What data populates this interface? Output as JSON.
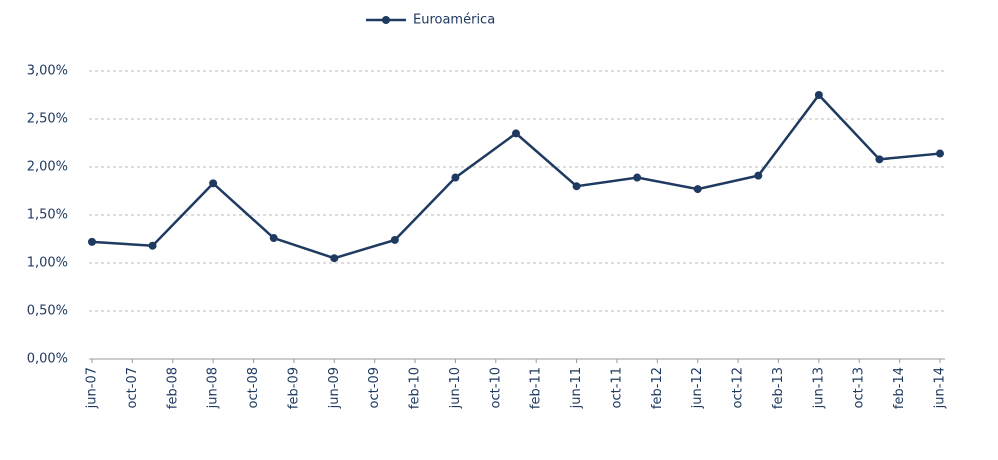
{
  "chart_data": {
    "type": "line",
    "x": [
      "2007-06",
      "2007-12",
      "2008-06",
      "2008-12",
      "2009-06",
      "2009-12",
      "2010-06",
      "2010-12",
      "2011-06",
      "2011-12",
      "2012-06",
      "2012-12",
      "2013-06",
      "2013-12",
      "2014-06"
    ],
    "series": [
      {
        "name": "Euroamérica",
        "color": "#1f3a60",
        "values": [
          1.22,
          1.18,
          1.83,
          1.26,
          1.05,
          1.24,
          1.89,
          2.35,
          1.8,
          1.89,
          1.77,
          1.91,
          2.75,
          2.08,
          2.14
        ]
      }
    ],
    "xlim": [
      "2007-06",
      "2014-06"
    ],
    "xticks": [
      {
        "value": "2007-06",
        "label": "jun-07"
      },
      {
        "value": "2007-10",
        "label": "oct-07"
      },
      {
        "value": "2008-02",
        "label": "feb-08"
      },
      {
        "value": "2008-06",
        "label": "jun-08"
      },
      {
        "value": "2008-10",
        "label": "oct-08"
      },
      {
        "value": "2009-02",
        "label": "feb-09"
      },
      {
        "value": "2009-06",
        "label": "jun-09"
      },
      {
        "value": "2009-10",
        "label": "oct-09"
      },
      {
        "value": "2010-02",
        "label": "feb-10"
      },
      {
        "value": "2010-06",
        "label": "jun-10"
      },
      {
        "value": "2010-10",
        "label": "oct-10"
      },
      {
        "value": "2011-02",
        "label": "feb-11"
      },
      {
        "value": "2011-06",
        "label": "jun-11"
      },
      {
        "value": "2011-10",
        "label": "oct-11"
      },
      {
        "value": "2012-02",
        "label": "feb-12"
      },
      {
        "value": "2012-06",
        "label": "jun-12"
      },
      {
        "value": "2012-10",
        "label": "oct-12"
      },
      {
        "value": "2013-02",
        "label": "feb-13"
      },
      {
        "value": "2013-06",
        "label": "jun-13"
      },
      {
        "value": "2013-10",
        "label": "oct-13"
      },
      {
        "value": "2014-02",
        "label": "feb-14"
      },
      {
        "value": "2014-06",
        "label": "jun-14"
      }
    ],
    "ylim": [
      0,
      3
    ],
    "yticks": [
      {
        "value": 0,
        "label": "0,00%"
      },
      {
        "value": 0.5,
        "label": "0,50%"
      },
      {
        "value": 1,
        "label": "1,00%"
      },
      {
        "value": 1.5,
        "label": "1,50%"
      },
      {
        "value": 2,
        "label": "2,00%"
      },
      {
        "value": 2.5,
        "label": "2,50%"
      },
      {
        "value": 3,
        "label": "3,00%"
      }
    ],
    "grid": true
  }
}
